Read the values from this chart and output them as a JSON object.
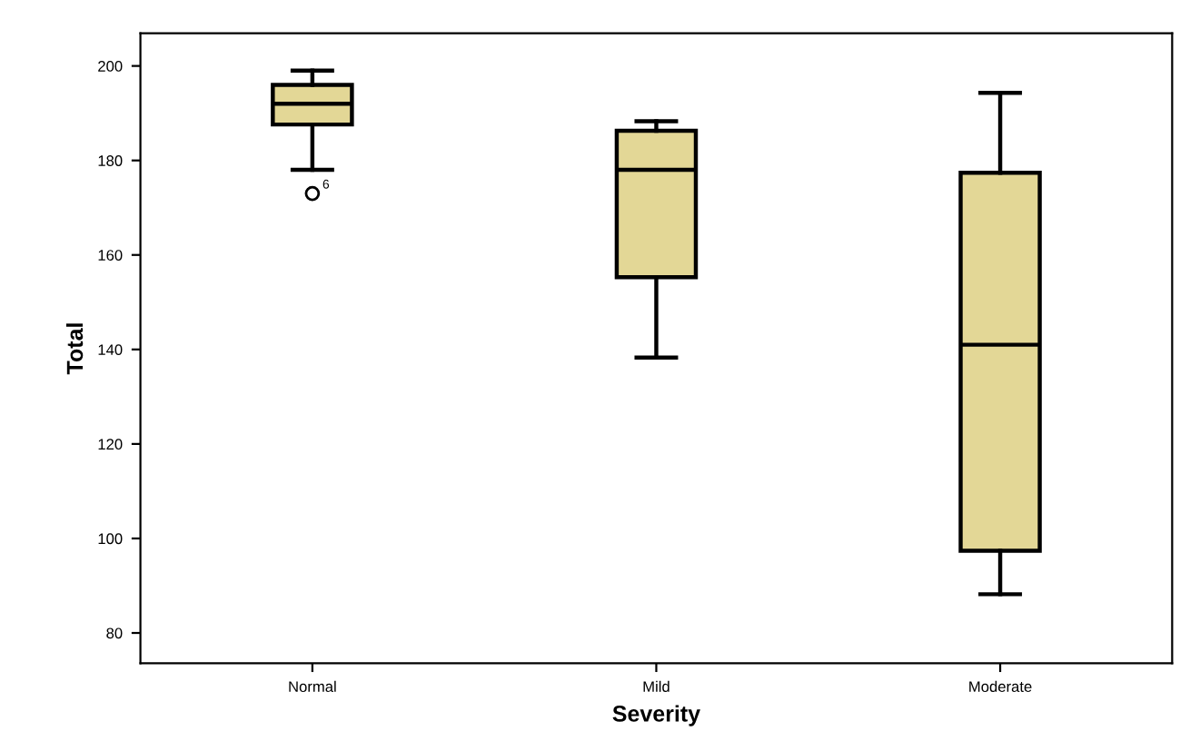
{
  "chart_data": {
    "type": "box",
    "xlabel": "Severity",
    "ylabel": "Total",
    "categories": [
      "Normal",
      "Mild",
      "Moderate"
    ],
    "boxes": [
      {
        "low": 178,
        "q1": 187.6,
        "median": 192,
        "q3": 196,
        "high": 199,
        "outliers": [
          173
        ]
      },
      {
        "low": 138.3,
        "q1": 155.3,
        "median": 178,
        "q3": 186.3,
        "high": 188.3
      },
      {
        "low": 88.2,
        "q1": 97.4,
        "median": 141,
        "q3": 177.4,
        "high": 194.3
      }
    ],
    "color": "#e3d796",
    "annotations": [
      "6"
    ],
    "ylim": [
      73.6,
      206.9
    ],
    "yticks": [
      80,
      100,
      120,
      140,
      160,
      180,
      200
    ],
    "grid": false
  }
}
